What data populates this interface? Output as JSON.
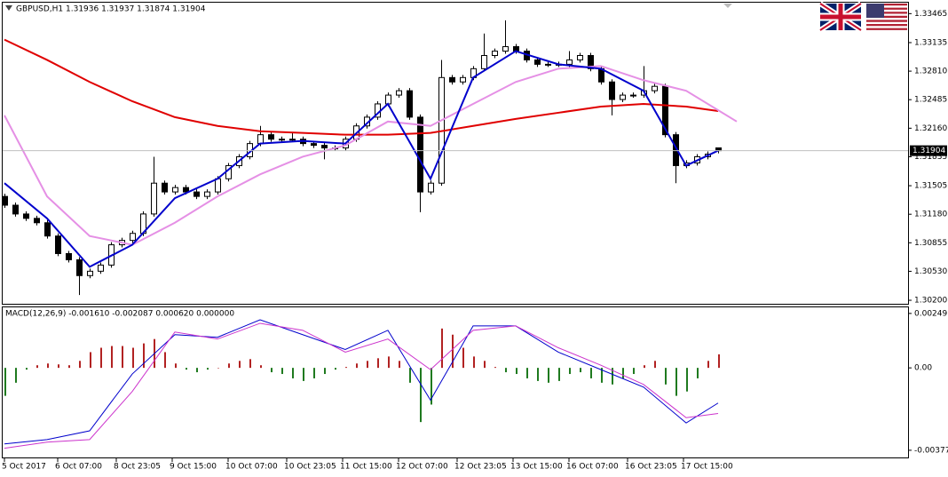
{
  "chart_data": [
    {
      "type": "candlestick",
      "title": "GBPUSD,H1  1.31936 1.31937 1.31874 1.31904",
      "open": [
        1.31383,
        1.31283,
        1.31183,
        1.31133,
        1.31083,
        1.30932,
        1.30732,
        1.30661,
        1.30481,
        1.30531,
        1.30601,
        1.30832,
        1.30882,
        1.30962,
        1.31183,
        1.31534,
        1.31434,
        1.31484,
        1.31434,
        1.31383,
        1.31434,
        1.31584,
        1.31734,
        1.31835,
        1.31985,
        1.32086,
        1.32035,
        1.32035,
        1.32035,
        1.31985,
        1.31965,
        1.31935,
        1.31935,
        1.32035,
        1.32186,
        1.32286,
        1.32437,
        1.32537,
        1.32587,
        1.32286,
        1.31434,
        1.31534,
        1.32737,
        1.32687,
        1.32737,
        1.32838,
        1.32988,
        1.33038,
        1.33089,
        1.33038,
        1.32938,
        1.32888,
        1.32888,
        1.32888,
        1.32938,
        1.32988,
        1.32838,
        1.32687,
        1.32487,
        1.32537,
        1.32537,
        1.32587,
        1.32637,
        1.32086,
        1.31734,
        1.31765,
        1.31835,
        1.31936
      ],
      "high": [
        1.31413,
        1.31313,
        1.31213,
        1.31163,
        1.31113,
        1.30962,
        1.30762,
        1.30691,
        1.30561,
        1.30631,
        1.30862,
        1.30912,
        1.30992,
        1.31213,
        1.31835,
        1.31564,
        1.31514,
        1.31514,
        1.31464,
        1.31464,
        1.31614,
        1.31764,
        1.31865,
        1.32015,
        1.32186,
        1.32116,
        1.32065,
        1.32116,
        1.32065,
        1.32015,
        1.31995,
        1.31965,
        1.32065,
        1.32216,
        1.32316,
        1.32467,
        1.32567,
        1.32617,
        1.32617,
        1.32316,
        1.31564,
        1.32938,
        1.32767,
        1.32767,
        1.32868,
        1.33239,
        1.33068,
        1.33389,
        1.33119,
        1.33068,
        1.32968,
        1.32918,
        1.32918,
        1.33038,
        1.33018,
        1.33018,
        1.32868,
        1.32717,
        1.32567,
        1.32567,
        1.32868,
        1.32667,
        1.32667,
        1.32116,
        1.31795,
        1.31865,
        1.31895,
        1.31937
      ],
      "low": [
        1.31253,
        1.31153,
        1.31103,
        1.31053,
        1.30902,
        1.30702,
        1.30631,
        1.3026,
        1.30451,
        1.30501,
        1.30571,
        1.30802,
        1.30852,
        1.30932,
        1.31153,
        1.31404,
        1.31404,
        1.31404,
        1.31353,
        1.31353,
        1.31404,
        1.31554,
        1.31704,
        1.31805,
        1.31955,
        1.32005,
        1.32005,
        1.32005,
        1.31955,
        1.31935,
        1.31805,
        1.31905,
        1.31905,
        1.32005,
        1.32156,
        1.32256,
        1.32407,
        1.32507,
        1.32256,
        1.31203,
        1.31404,
        1.31504,
        1.32657,
        1.32657,
        1.32707,
        1.32808,
        1.32958,
        1.33008,
        1.33008,
        1.32908,
        1.32858,
        1.32858,
        1.32858,
        1.32858,
        1.32908,
        1.32808,
        1.32657,
        1.32306,
        1.32457,
        1.32507,
        1.32507,
        1.32557,
        1.32056,
        1.31534,
        1.31704,
        1.31735,
        1.31805,
        1.31874
      ],
      "close": [
        1.31283,
        1.31183,
        1.31133,
        1.31083,
        1.30932,
        1.30732,
        1.30661,
        1.30481,
        1.30531,
        1.30601,
        1.30832,
        1.30882,
        1.30962,
        1.31183,
        1.31534,
        1.31434,
        1.31484,
        1.31434,
        1.31383,
        1.31434,
        1.31584,
        1.31734,
        1.31835,
        1.31985,
        1.32086,
        1.32035,
        1.32035,
        1.32035,
        1.31985,
        1.31965,
        1.31935,
        1.31935,
        1.32035,
        1.32186,
        1.32286,
        1.32437,
        1.32537,
        1.32587,
        1.32286,
        1.31434,
        1.31534,
        1.32737,
        1.32687,
        1.32737,
        1.32838,
        1.32988,
        1.33038,
        1.33089,
        1.33038,
        1.32938,
        1.32888,
        1.32888,
        1.32888,
        1.32938,
        1.32988,
        1.32838,
        1.32687,
        1.32487,
        1.32537,
        1.32537,
        1.32587,
        1.32637,
        1.32086,
        1.31734,
        1.31765,
        1.31835,
        1.31865,
        1.31904
      ],
      "up_color": "#ffffff",
      "down_color": "#000000",
      "outline": "#000000",
      "series": [
        {
          "color": "#e00000",
          "x": [
            0,
            4,
            8,
            12,
            16,
            20,
            24,
            28,
            32,
            36,
            40,
            44,
            48,
            52,
            56,
            60,
            64,
            67
          ],
          "values": [
            1.33169,
            1.32938,
            1.32687,
            1.32467,
            1.32286,
            1.32186,
            1.32126,
            1.32106,
            1.32086,
            1.32086,
            1.32106,
            1.32186,
            1.32266,
            1.32336,
            1.32406,
            1.32437,
            1.32406,
            1.32356
          ]
        },
        {
          "color": "#e590e5",
          "x": [
            0,
            4,
            8,
            12,
            16,
            20,
            24,
            28,
            32,
            36,
            40,
            44,
            48,
            52,
            56,
            60,
            64,
            68.75
          ],
          "values": [
            1.32306,
            1.31383,
            1.30932,
            1.30832,
            1.31083,
            1.31383,
            1.31634,
            1.31835,
            1.31965,
            1.32236,
            1.32186,
            1.32437,
            1.32687,
            1.32838,
            1.32868,
            1.32707,
            1.32587,
            1.32236
          ]
        },
        {
          "color": "#0000cc",
          "x": [
            0,
            4,
            8,
            12,
            16,
            20,
            24,
            28,
            32,
            36,
            40,
            44,
            48,
            52,
            56,
            60,
            64,
            67
          ],
          "values": [
            1.31534,
            1.31133,
            1.30581,
            1.30832,
            1.31363,
            1.31584,
            1.31985,
            1.32015,
            1.31985,
            1.32437,
            1.31584,
            1.32737,
            1.33038,
            1.32888,
            1.32838,
            1.32587,
            1.31734,
            1.31905
          ]
        }
      ],
      "last_price": 1.31904,
      "ylim": [
        1.3016,
        1.3359
      ],
      "yticks": [
        1.33465,
        1.33135,
        {
          "value": 1.3281,
          "label": "1.32810"
        },
        1.32485,
        {
          "value": 1.3216,
          "label": "1.32160"
        },
        1.31835,
        1.31505,
        {
          "value": 1.3118,
          "label": "1.31180"
        },
        1.30855,
        {
          "value": 1.3053,
          "label": "1.30530"
        },
        {
          "value": 1.302,
          "label": "1.30200"
        }
      ]
    },
    {
      "type": "macd",
      "title": "MACD(12,26,9) -0.001610 -0.002087 0.000620 0.000000",
      "values": [
        -0.00128,
        -0.00068,
        -8e-05,
        0.00012,
        0.0002,
        0.00016,
        0.00012,
        0.00032,
        0.00072,
        0.00092,
        0.001,
        0.001,
        0.00092,
        0.00112,
        0.00132,
        0.00072,
        0.0002,
        -8e-05,
        -0.0002,
        -8e-05,
        0,
        0.0002,
        0.00032,
        0.0004,
        0.00012,
        -0.0002,
        -0.00028,
        -0.00048,
        -0.0006,
        -0.00048,
        -0.00028,
        -8e-05,
        4e-05,
        0.0002,
        0.00032,
        0.00044,
        0.00052,
        0.00032,
        -0.00068,
        -0.00248,
        -0.00168,
        0.0018,
        0.00152,
        0.00092,
        0.00052,
        0.00032,
        4e-05,
        -0.0002,
        -0.00028,
        -0.00048,
        -0.0006,
        -0.00068,
        -0.0006,
        -0.00028,
        -0.0002,
        -0.00048,
        -0.00068,
        -0.00076,
        -0.00048,
        -0.00028,
        0.00012,
        0.00032,
        -0.00076,
        -0.00128,
        -0.00108,
        -0.00048,
        0.00032,
        0.00062
      ],
      "pos_color": "#b22222",
      "neg_color": "#1f7a1f",
      "series": [
        {
          "color": "#0000cc",
          "x": [
            0,
            4,
            8,
            12,
            16,
            20,
            24,
            28,
            32,
            36,
            40,
            44,
            48,
            52,
            56,
            60,
            64,
            67
          ],
          "values": [
            -0.00348,
            -0.00328,
            -0.00288,
            -0.00028,
            0.00152,
            0.0014,
            0.0022,
            0.00152,
            0.00084,
            0.00172,
            -0.00148,
            0.00192,
            0.00192,
            0.00072,
            -8e-05,
            -0.00088,
            -0.00252,
            -0.00161
          ]
        },
        {
          "color": "#cc33cc",
          "x": [
            0,
            4,
            8,
            12,
            16,
            20,
            24,
            28,
            32,
            36,
            40,
            44,
            48,
            52,
            56,
            60,
            64,
            67
          ],
          "values": [
            -0.00368,
            -0.0034,
            -0.00328,
            -0.00108,
            0.00164,
            0.00132,
            0.00204,
            0.00172,
            0.00072,
            0.00132,
            -8e-05,
            0.00172,
            0.00192,
            0.00092,
            0.00012,
            -0.00076,
            -0.00228,
            -0.00209
          ]
        }
      ],
      "ylim": [
        -0.0041,
        0.00277
      ],
      "yticks": [
        0.002491,
        {
          "value": 0,
          "label": "0.00"
        },
        -0.003771
      ],
      "xticks": [
        {
          "value": 0,
          "label": "5 Oct 2017"
        },
        {
          "value": 5,
          "label": "6 Oct 07:00"
        },
        {
          "value": 10.5,
          "label": "8 Oct 23:05"
        },
        {
          "value": 15.75,
          "label": "9 Oct 15:00"
        },
        {
          "value": 21,
          "label": "10 Oct 07:00"
        },
        {
          "value": 26.5,
          "label": "10 Oct 23:05"
        },
        {
          "value": 31.75,
          "label": "11 Oct 15:00"
        },
        {
          "value": 37,
          "label": "12 Oct 07:00"
        },
        {
          "value": 42.5,
          "label": "12 Oct 23:05"
        },
        {
          "value": 47.75,
          "label": "13 Oct 15:00"
        },
        {
          "value": 53,
          "label": "16 Oct 07:00"
        },
        {
          "value": 58.5,
          "label": "16 Oct 23:05"
        },
        {
          "value": 63.75,
          "label": "17 Oct 15:00"
        }
      ]
    }
  ]
}
